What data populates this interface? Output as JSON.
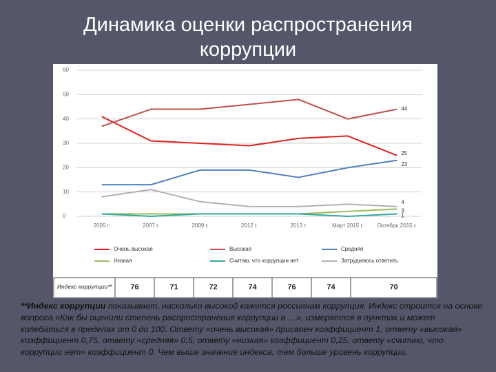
{
  "title": "Динамика оценки распространения коррупции",
  "chart_data": {
    "type": "line",
    "categories": [
      "2005 г.",
      "2007 г.",
      "2009 г.",
      "2012 г.",
      "2013 г.",
      "Март 2015 г.",
      "Октябрь 2015 г."
    ],
    "series": [
      {
        "name": "Очень высокая",
        "color": "#e0201f",
        "values": [
          41,
          31,
          30,
          29,
          32,
          33,
          25
        ]
      },
      {
        "name": "Высокая",
        "color": "#c0504d",
        "values": [
          37,
          44,
          44,
          46,
          48,
          40,
          44
        ]
      },
      {
        "name": "Средняя",
        "color": "#4f81bd",
        "values": [
          13,
          13,
          19,
          19,
          16,
          20,
          23
        ]
      },
      {
        "name": "Низкая",
        "color": "#9bbb59",
        "values": [
          1,
          1,
          1,
          1,
          1,
          2,
          3
        ]
      },
      {
        "name": "Считаю, что коррупции нет",
        "color": "#31a9a0",
        "values": [
          1,
          0,
          1,
          1,
          1,
          0,
          1
        ]
      },
      {
        "name": "Затрудняюсь ответить",
        "color": "#b0b0b0",
        "values": [
          8,
          11,
          6,
          4,
          4,
          5,
          4
        ]
      }
    ],
    "ylim": [
      0,
      60
    ],
    "yticks": [
      0,
      10,
      20,
      30,
      40,
      50,
      60
    ],
    "grid": true
  },
  "index_row": {
    "label": "Индекс коррупции**",
    "values": [
      76,
      71,
      72,
      74,
      76,
      74,
      70
    ]
  },
  "footnote": {
    "bold": "**Индекс коррупции",
    "text": " показывает, насколько высокой кажется россиянам коррупция. Индекс строится на основе вопроса «Как бы оценили степень распространения коррупции в …», измеряется в пунктах и может колебаться в пределах от 0 до 100. Ответу «очень высокая» присвоен коэффициент 1, ответу «высокая» коэффициент 0,75, ответу «средняя» 0,5, ответу «низкая» коэффициент 0,25, ответу «считаю, что коррупции нет» коэффициент 0. Чем выше значение индекса, тем больше уровень коррупции."
  }
}
